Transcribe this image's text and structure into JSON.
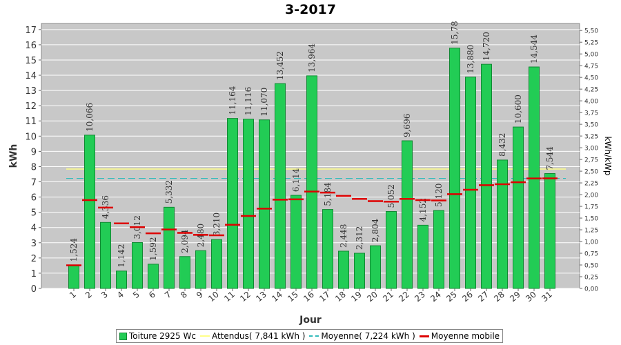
{
  "chart_data": {
    "type": "bar",
    "title": "3-2017",
    "xlabel": "Jour",
    "ylabel": "kWh",
    "y2label": "kWh/kWp",
    "ylim": [
      0,
      17.4
    ],
    "yticks": [
      "0",
      "1",
      "2",
      "3",
      "4",
      "5",
      "6",
      "7",
      "8",
      "9",
      "10",
      "11",
      "12",
      "13",
      "14",
      "15",
      "16",
      "17"
    ],
    "y2lim": [
      0,
      5.65
    ],
    "y2ticks": [
      "0,00",
      "0,25",
      "0,50",
      "0,75",
      "1,00",
      "1,25",
      "1,50",
      "1,75",
      "2,00",
      "2,25",
      "2,50",
      "2,75",
      "3,00",
      "3,25",
      "3,50",
      "3,75",
      "4,00",
      "4,25",
      "4,50",
      "4,75",
      "5,00",
      "5,25",
      "5,50"
    ],
    "grid": true,
    "legend_position": "bottom",
    "categories": [
      "1",
      "2",
      "3",
      "4",
      "5",
      "6",
      "7",
      "8",
      "9",
      "10",
      "11",
      "12",
      "13",
      "14",
      "15",
      "16",
      "17",
      "18",
      "19",
      "20",
      "21",
      "22",
      "23",
      "24",
      "25",
      "26",
      "27",
      "28",
      "29",
      "30",
      "31"
    ],
    "series": [
      {
        "name": "Toiture 2925 Wc",
        "values": [
          1.524,
          10.066,
          4.336,
          1.142,
          3.012,
          1.592,
          5.332,
          2.094,
          2.48,
          3.21,
          11.164,
          11.116,
          11.07,
          13.452,
          6.114,
          13.964,
          5.184,
          2.448,
          2.312,
          2.804,
          5.052,
          9.696,
          4.152,
          5.12,
          15.78,
          13.88,
          14.72,
          8.432,
          10.6,
          14.544,
          7.544
        ],
        "labels": [
          "1,524",
          "10,066",
          "4,336",
          "1,142",
          "3,012",
          "1,592",
          "5,332",
          "2,094",
          "2,480",
          "3,210",
          "11,164",
          "11,116",
          "11,070",
          "13,452",
          "6,114",
          "13,964",
          "5,184",
          "2,448",
          "2,312",
          "2,804",
          "5,052",
          "9,696",
          "4,152",
          "5,120",
          "15,78",
          "13,880",
          "14,720",
          "8,432",
          "10,600",
          "14,544",
          "7,544"
        ]
      },
      {
        "name": "Attendus( 7,841 kWh )",
        "value": 7.841
      },
      {
        "name": "Moyenne( 7,224 kWh )",
        "value": 7.224
      },
      {
        "name": "Moyenne mobile",
        "values": [
          1.52,
          5.8,
          5.31,
          4.27,
          4.02,
          3.62,
          3.87,
          3.65,
          3.52,
          3.49,
          4.18,
          4.76,
          5.24,
          5.83,
          5.85,
          6.36,
          6.29,
          6.08,
          5.88,
          5.73,
          5.7,
          5.88,
          5.8,
          5.78,
          6.19,
          6.48,
          6.78,
          6.84,
          6.97,
          7.22,
          7.23
        ]
      }
    ],
    "colors": {
      "bar_fill": "#22cc55",
      "bar_edge": "#118833",
      "expected": "#ffff88",
      "average": "#33bbbb",
      "moving_avg": "#dd0000",
      "plot_bg": "#c8c8c8",
      "grid": "#ffffff"
    }
  }
}
